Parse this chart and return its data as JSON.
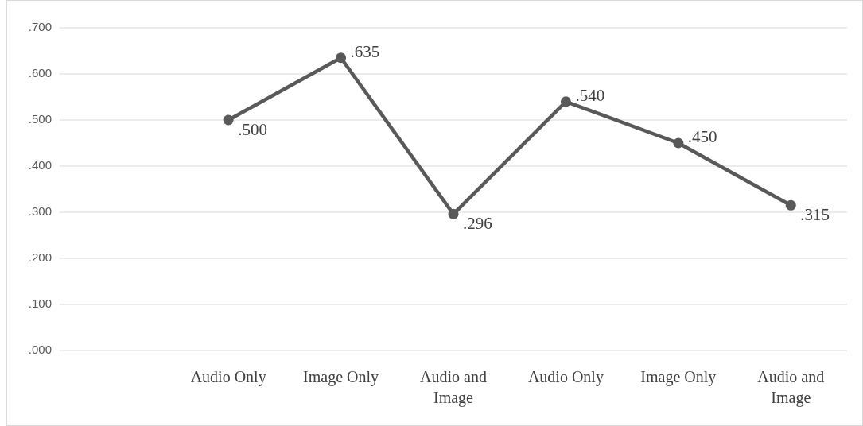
{
  "chart_data": {
    "type": "line",
    "categories": [
      null,
      "Audio Only",
      "Image Only",
      "Audio and Image",
      "Audio Only",
      "Image Only",
      "Audio and Image"
    ],
    "series": [
      {
        "color": "#595959",
        "values": [
          null,
          0.5,
          0.635,
          0.296,
          0.54,
          0.45,
          0.315
        ],
        "value_labels": [
          null,
          ".500",
          ".635",
          ".296",
          ".540",
          ".450",
          ".315"
        ]
      }
    ],
    "ylim": [
      0,
      0.7
    ],
    "yticks": [
      {
        "value": 0,
        "label": ".000"
      },
      {
        "value": 0.1,
        "label": ".100"
      },
      {
        "value": 0.2,
        "label": ".200"
      },
      {
        "value": 0.3,
        "label": ".300"
      },
      {
        "value": 0.4,
        "label": ".400"
      },
      {
        "value": 0.5,
        "label": ".500"
      },
      {
        "value": 0.6,
        "label": ".600"
      },
      {
        "value": 0.7,
        "label": ".700"
      }
    ],
    "grid": "y",
    "marker": "circle",
    "line_style": "solid"
  }
}
